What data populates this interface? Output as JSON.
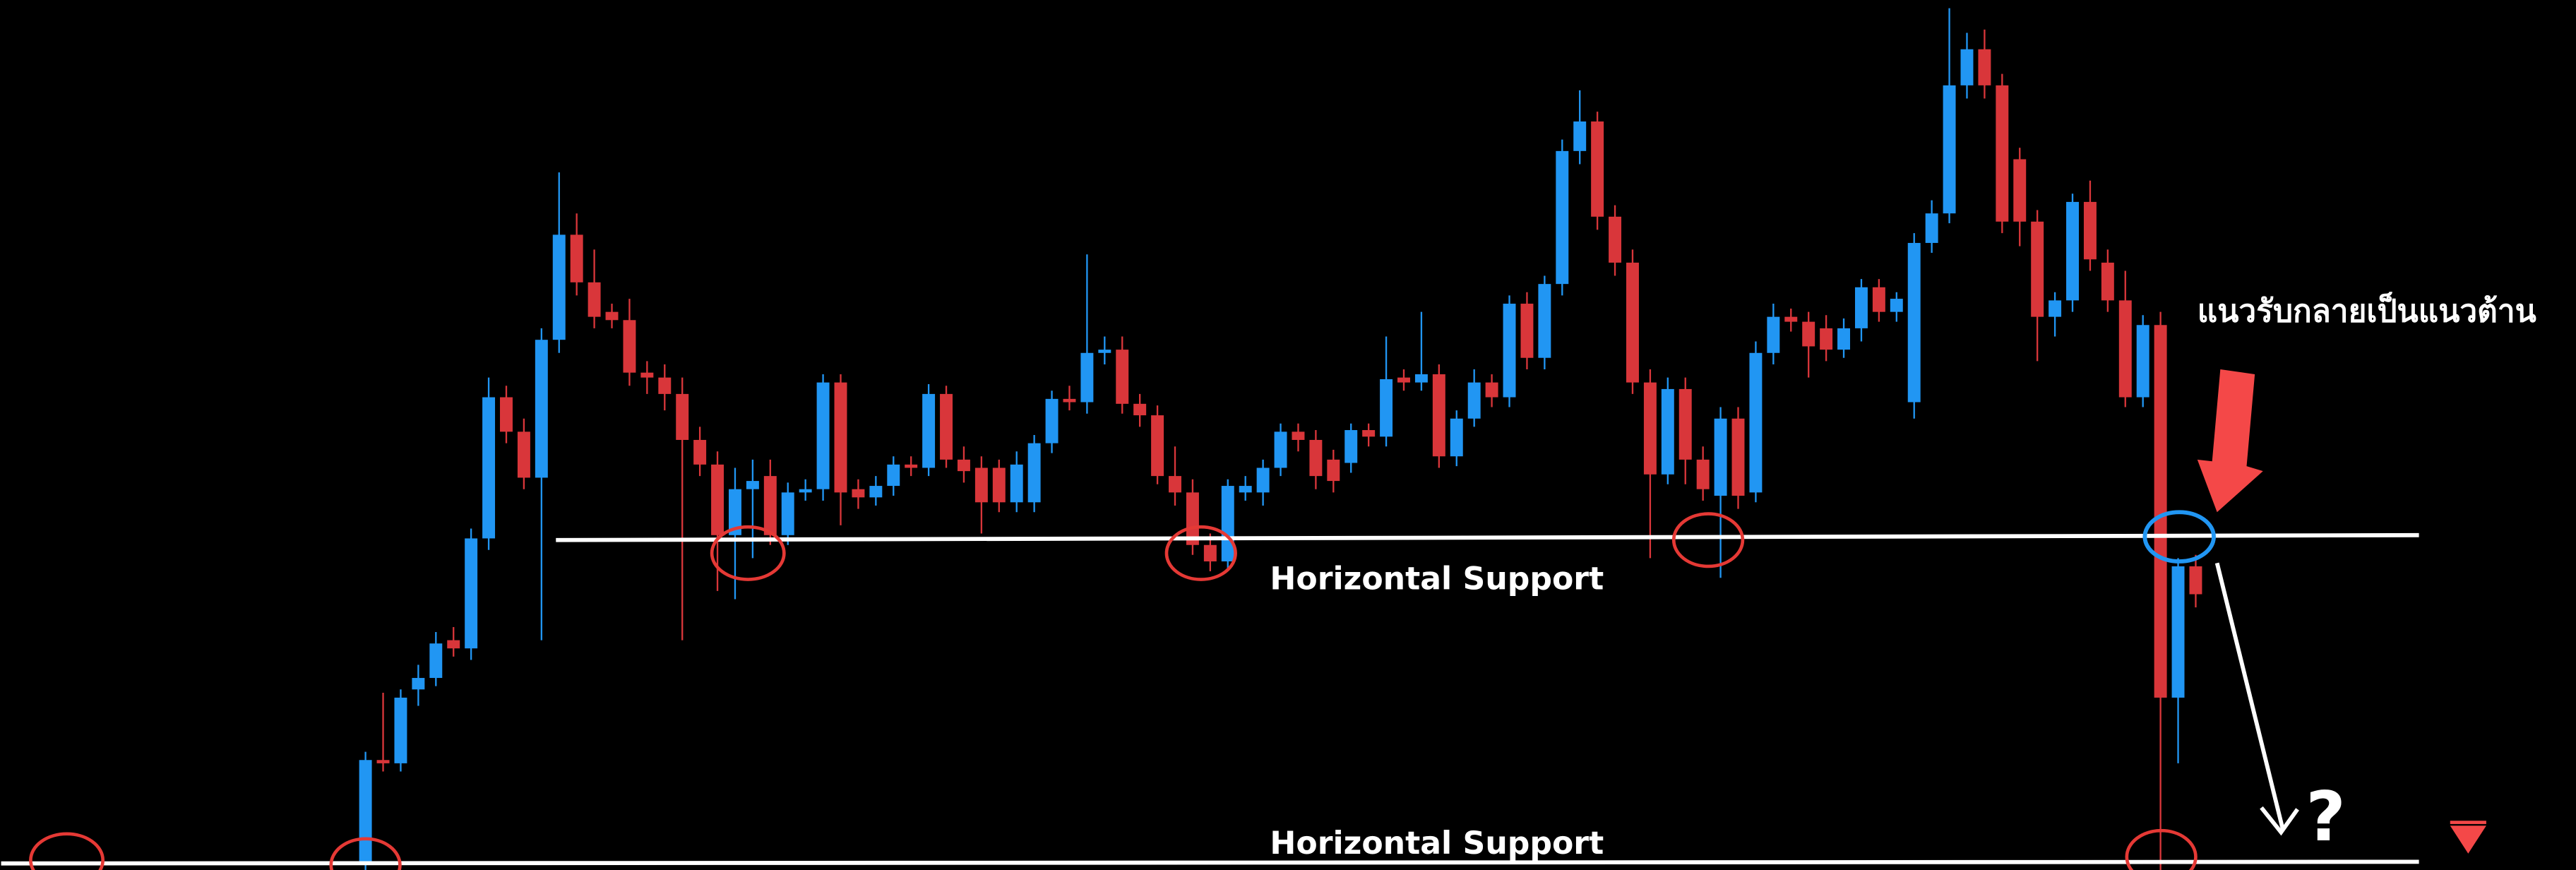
{
  "chart_data": {
    "type": "candlestick",
    "annotations": [
      "แนวรับกลายเป็นแนวต้าน",
      "Horizontal Support",
      "Horizontal Support",
      "?"
    ],
    "up_color": "#2196f3",
    "down_color": "#d9363a",
    "ylim": [
      0,
      530
    ],
    "ohlc": [
      [
        5,
        72,
        0,
        67
      ],
      [
        67,
        108,
        60,
        65
      ],
      [
        65,
        110,
        60,
        105
      ],
      [
        110,
        125,
        100,
        117
      ],
      [
        117,
        145,
        112,
        138
      ],
      [
        140,
        148,
        130,
        135
      ],
      [
        135,
        208,
        128,
        202
      ],
      [
        202,
        300,
        195,
        288
      ],
      [
        288,
        295,
        260,
        267
      ],
      [
        267,
        275,
        232,
        239
      ],
      [
        239,
        330,
        140,
        323
      ],
      [
        323,
        425,
        315,
        387
      ],
      [
        387,
        400,
        350,
        358
      ],
      [
        358,
        378,
        330,
        337
      ],
      [
        340,
        345,
        330,
        335
      ],
      [
        335,
        348,
        295,
        303
      ],
      [
        303,
        310,
        290,
        300
      ],
      [
        300,
        308,
        280,
        290
      ],
      [
        290,
        300,
        140,
        262
      ],
      [
        262,
        270,
        240,
        247
      ],
      [
        247,
        255,
        170,
        204
      ],
      [
        204,
        245,
        165,
        232
      ],
      [
        232,
        250,
        190,
        237
      ],
      [
        240,
        250,
        198,
        204
      ],
      [
        204,
        236,
        198,
        230
      ],
      [
        230,
        238,
        225,
        232
      ],
      [
        232,
        302,
        225,
        297
      ],
      [
        297,
        302,
        210,
        230
      ],
      [
        232,
        238,
        220,
        227
      ],
      [
        227,
        240,
        222,
        234
      ],
      [
        234,
        252,
        228,
        247
      ],
      [
        247,
        252,
        240,
        245
      ],
      [
        245,
        296,
        240,
        290
      ],
      [
        290,
        295,
        245,
        250
      ],
      [
        250,
        258,
        236,
        243
      ],
      [
        245,
        252,
        205,
        224
      ],
      [
        245,
        250,
        218,
        224
      ],
      [
        224,
        255,
        218,
        247
      ],
      [
        224,
        265,
        218,
        260
      ],
      [
        260,
        292,
        254,
        287
      ],
      [
        287,
        295,
        280,
        285
      ],
      [
        285,
        375,
        278,
        315
      ],
      [
        315,
        325,
        308,
        317
      ],
      [
        317,
        325,
        278,
        284
      ],
      [
        284,
        290,
        270,
        277
      ],
      [
        277,
        283,
        235,
        240
      ],
      [
        240,
        258,
        222,
        230
      ],
      [
        230,
        238,
        192,
        198
      ],
      [
        198,
        205,
        182,
        188
      ],
      [
        188,
        238,
        182,
        234
      ],
      [
        230,
        240,
        225,
        234
      ],
      [
        230,
        250,
        222,
        245
      ],
      [
        245,
        272,
        240,
        267
      ],
      [
        267,
        272,
        255,
        262
      ],
      [
        262,
        268,
        232,
        240
      ],
      [
        250,
        256,
        230,
        237
      ],
      [
        248,
        272,
        242,
        268
      ],
      [
        268,
        272,
        258,
        264
      ],
      [
        264,
        325,
        258,
        299
      ],
      [
        300,
        305,
        292,
        297
      ],
      [
        297,
        340,
        292,
        302
      ],
      [
        302,
        308,
        245,
        252
      ],
      [
        252,
        280,
        246,
        275
      ],
      [
        275,
        305,
        270,
        297
      ],
      [
        297,
        302,
        282,
        288
      ],
      [
        288,
        350,
        282,
        345
      ],
      [
        345,
        352,
        305,
        312
      ],
      [
        312,
        362,
        305,
        357
      ],
      [
        357,
        445,
        350,
        438
      ],
      [
        438,
        475,
        430,
        456
      ],
      [
        456,
        462,
        390,
        398
      ],
      [
        398,
        405,
        362,
        370
      ],
      [
        370,
        378,
        290,
        297
      ],
      [
        297,
        305,
        190,
        241
      ],
      [
        241,
        300,
        235,
        293
      ],
      [
        293,
        300,
        235,
        250
      ],
      [
        250,
        258,
        225,
        232
      ],
      [
        228,
        282,
        178,
        275
      ],
      [
        275,
        282,
        220,
        228
      ],
      [
        230,
        322,
        224,
        315
      ],
      [
        315,
        345,
        308,
        337
      ],
      [
        337,
        342,
        328,
        334
      ],
      [
        334,
        340,
        300,
        319
      ],
      [
        330,
        338,
        310,
        317
      ],
      [
        317,
        336,
        312,
        330
      ],
      [
        330,
        360,
        322,
        355
      ],
      [
        355,
        360,
        334,
        340
      ],
      [
        340,
        352,
        334,
        348
      ],
      [
        285,
        388,
        275,
        382
      ],
      [
        382,
        408,
        376,
        400
      ],
      [
        400,
        525,
        394,
        478
      ],
      [
        478,
        510,
        470,
        500
      ],
      [
        500,
        512,
        470,
        478
      ],
      [
        478,
        485,
        388,
        395
      ],
      [
        433,
        440,
        380,
        395
      ],
      [
        395,
        402,
        310,
        337
      ],
      [
        337,
        352,
        325,
        347
      ],
      [
        347,
        412,
        340,
        407
      ],
      [
        407,
        420,
        365,
        372
      ],
      [
        370,
        378,
        340,
        347
      ],
      [
        347,
        365,
        282,
        288
      ],
      [
        288,
        338,
        282,
        332
      ],
      [
        332,
        340,
        0,
        105
      ],
      [
        105,
        190,
        65,
        185
      ],
      [
        185,
        192,
        160,
        168
      ]
    ]
  }
}
